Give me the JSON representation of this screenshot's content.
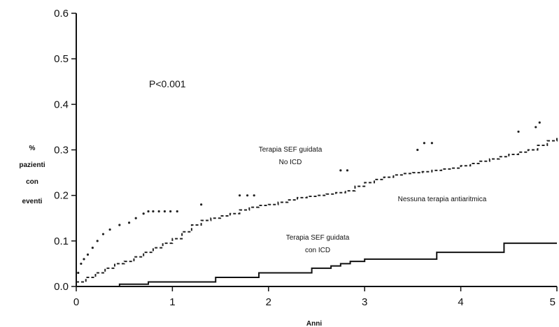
{
  "chart_data": {
    "type": "line",
    "title": "",
    "xlabel": "Anni",
    "ylabel": [
      "%",
      "pazienti",
      "con",
      "eventi"
    ],
    "xlim": [
      0,
      5
    ],
    "ylim": [
      0,
      0.6
    ],
    "x_ticks": [
      0,
      1,
      2,
      3,
      4,
      5
    ],
    "x_tick_labels": [
      "0",
      "1",
      "2",
      "3",
      "4",
      "5"
    ],
    "y_ticks": [
      0,
      0.1,
      0.2,
      0.3,
      0.4,
      0.5,
      0.6
    ],
    "y_tick_labels": [
      "0.0",
      "0.1",
      "0.2",
      "0.3",
      "0.4",
      "0.5",
      "0.6"
    ],
    "grid": false,
    "annotation_pvalue": "P<0.001",
    "series": [
      {
        "name": "Nessuna terapia antiaritmica",
        "label_lines": [
          "Nessuna terapia antiaritmica"
        ],
        "style": "dashed",
        "x": [
          0,
          0.1,
          0.2,
          0.3,
          0.4,
          0.5,
          0.6,
          0.7,
          0.8,
          0.9,
          1.0,
          1.1,
          1.2,
          1.3,
          1.4,
          1.5,
          1.6,
          1.7,
          1.8,
          1.9,
          2.0,
          2.1,
          2.2,
          2.3,
          2.4,
          2.5,
          2.6,
          2.7,
          2.8,
          2.9,
          3.0,
          3.1,
          3.2,
          3.3,
          3.4,
          3.5,
          3.6,
          3.7,
          3.8,
          3.9,
          4.0,
          4.1,
          4.2,
          4.3,
          4.4,
          4.5,
          4.6,
          4.7,
          4.8,
          4.9,
          5.0
        ],
        "y": [
          0.01,
          0.02,
          0.03,
          0.04,
          0.05,
          0.055,
          0.065,
          0.075,
          0.085,
          0.095,
          0.105,
          0.12,
          0.135,
          0.145,
          0.15,
          0.155,
          0.16,
          0.168,
          0.174,
          0.178,
          0.18,
          0.185,
          0.19,
          0.195,
          0.198,
          0.2,
          0.203,
          0.206,
          0.21,
          0.22,
          0.228,
          0.235,
          0.24,
          0.245,
          0.248,
          0.25,
          0.252,
          0.255,
          0.258,
          0.26,
          0.265,
          0.27,
          0.275,
          0.28,
          0.285,
          0.29,
          0.295,
          0.3,
          0.31,
          0.32,
          0.33
        ]
      },
      {
        "name": "Terapia SEF guidata No ICD",
        "label_lines": [
          "Terapia SEF guidata",
          "No ICD"
        ],
        "style": "dotted",
        "x": [
          0.02,
          0.05,
          0.08,
          0.12,
          0.17,
          0.22,
          0.28,
          0.35,
          0.45,
          0.55,
          0.62,
          0.7,
          0.75,
          0.8,
          0.86,
          0.92,
          0.98,
          1.05,
          1.3,
          1.7,
          1.78,
          1.85,
          2.75,
          2.82,
          3.55,
          3.62,
          3.7,
          4.6,
          4.78,
          4.82
        ],
        "y": [
          0.03,
          0.05,
          0.06,
          0.07,
          0.085,
          0.1,
          0.115,
          0.125,
          0.135,
          0.14,
          0.15,
          0.16,
          0.165,
          0.165,
          0.165,
          0.165,
          0.165,
          0.165,
          0.18,
          0.2,
          0.2,
          0.2,
          0.255,
          0.255,
          0.3,
          0.315,
          0.315,
          0.34,
          0.35,
          0.36
        ]
      },
      {
        "name": "Terapia SEF guidata con ICD",
        "label_lines": [
          "Terapia SEF guidata",
          "con ICD"
        ],
        "style": "solid",
        "x": [
          0,
          0.45,
          0.75,
          1.45,
          1.9,
          2.45,
          2.65,
          2.75,
          2.85,
          3.0,
          3.75,
          4.45,
          5.0
        ],
        "y": [
          0.0,
          0.005,
          0.01,
          0.02,
          0.03,
          0.04,
          0.045,
          0.05,
          0.055,
          0.06,
          0.075,
          0.095,
          0.095
        ]
      }
    ]
  }
}
